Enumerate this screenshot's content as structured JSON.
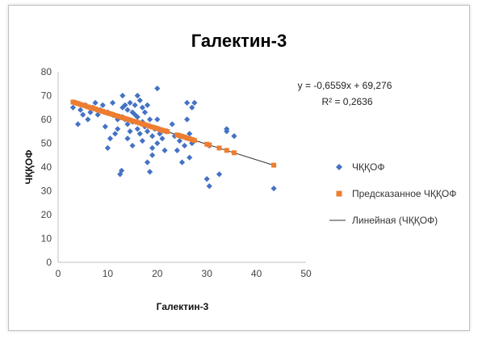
{
  "chart_data": {
    "type": "scatter",
    "title": "Галектин-3",
    "xlabel": "Галектин-3",
    "ylabel": "ЧҚҚОФ",
    "xlim": [
      0,
      50
    ],
    "ylim": [
      0,
      80
    ],
    "x_ticks": [
      "0",
      "10",
      "20",
      "30",
      "40",
      "50"
    ],
    "y_ticks": [
      "0",
      "10",
      "20",
      "30",
      "40",
      "50",
      "60",
      "70",
      "80"
    ],
    "grid": false,
    "legend_position": "right",
    "equation": "y = -0,6559x + 69,276",
    "r2_label": "R² = 0,2636",
    "trendline": {
      "slope": -0.6559,
      "intercept": 69.276,
      "x_range": [
        3,
        44
      ]
    },
    "series": [
      {
        "name": "ЧҚҚОФ",
        "marker": "diamond",
        "color": "#4472C4",
        "points": [
          [
            3,
            65
          ],
          [
            3.5,
            67
          ],
          [
            4,
            58
          ],
          [
            4.5,
            64
          ],
          [
            5,
            62
          ],
          [
            5.5,
            66
          ],
          [
            6,
            60
          ],
          [
            6.5,
            63
          ],
          [
            7,
            65
          ],
          [
            7.5,
            67
          ],
          [
            8,
            62
          ],
          [
            8.5,
            64
          ],
          [
            9,
            66
          ],
          [
            9.5,
            57
          ],
          [
            10,
            63
          ],
          [
            10,
            48
          ],
          [
            10.5,
            52
          ],
          [
            11,
            67
          ],
          [
            11,
            62
          ],
          [
            11.5,
            54
          ],
          [
            12,
            60
          ],
          [
            12,
            56
          ],
          [
            12.5,
            37
          ],
          [
            12.8,
            38.5
          ],
          [
            13,
            65
          ],
          [
            13,
            70
          ],
          [
            13,
            61
          ],
          [
            13.5,
            66
          ],
          [
            13.5,
            60
          ],
          [
            14,
            64
          ],
          [
            14,
            58
          ],
          [
            14,
            52
          ],
          [
            14.5,
            67
          ],
          [
            14.5,
            55
          ],
          [
            15,
            63
          ],
          [
            15,
            59
          ],
          [
            15,
            49
          ],
          [
            15.5,
            66
          ],
          [
            15.5,
            62
          ],
          [
            16,
            70
          ],
          [
            16,
            61
          ],
          [
            16,
            56
          ],
          [
            16.5,
            68
          ],
          [
            16.5,
            54
          ],
          [
            17,
            65
          ],
          [
            17,
            59
          ],
          [
            17,
            51
          ],
          [
            17.5,
            63
          ],
          [
            17.5,
            57
          ],
          [
            18,
            66
          ],
          [
            18,
            55
          ],
          [
            18,
            42
          ],
          [
            18.5,
            60
          ],
          [
            18.5,
            38
          ],
          [
            19,
            53
          ],
          [
            19,
            48
          ],
          [
            19,
            45
          ],
          [
            19.5,
            56
          ],
          [
            20,
            50
          ],
          [
            20,
            60
          ],
          [
            20,
            73
          ],
          [
            20.5,
            54
          ],
          [
            21,
            52
          ],
          [
            21.5,
            47
          ],
          [
            22,
            55
          ],
          [
            23,
            58
          ],
          [
            23.5,
            53
          ],
          [
            24,
            47
          ],
          [
            24.5,
            51
          ],
          [
            25,
            42
          ],
          [
            25.5,
            49
          ],
          [
            26,
            67
          ],
          [
            26,
            60
          ],
          [
            26.5,
            54
          ],
          [
            26.5,
            44
          ],
          [
            27,
            65
          ],
          [
            27,
            50
          ],
          [
            27.5,
            67
          ],
          [
            30,
            35
          ],
          [
            30.5,
            32
          ],
          [
            30.5,
            49
          ],
          [
            32.5,
            37
          ],
          [
            34,
            56
          ],
          [
            34,
            55
          ],
          [
            35.5,
            53
          ],
          [
            43.5,
            31
          ]
        ]
      },
      {
        "name": "Предсказанное ЧҚҚОФ",
        "marker": "square",
        "color": "#ED7D31",
        "points": [
          [
            3,
            67.3
          ],
          [
            3.5,
            67
          ],
          [
            4,
            66.7
          ],
          [
            4.5,
            66.3
          ],
          [
            5,
            66
          ],
          [
            5.5,
            65.7
          ],
          [
            6,
            65.3
          ],
          [
            6.5,
            65
          ],
          [
            7,
            64.7
          ],
          [
            7.5,
            64.4
          ],
          [
            8,
            64
          ],
          [
            8.5,
            63.7
          ],
          [
            9,
            63.4
          ],
          [
            9.5,
            63
          ],
          [
            10,
            62.7
          ],
          [
            10.5,
            62.4
          ],
          [
            11,
            62.1
          ],
          [
            11.5,
            61.7
          ],
          [
            12,
            61.4
          ],
          [
            12.5,
            61.1
          ],
          [
            13,
            60.7
          ],
          [
            13.5,
            60.4
          ],
          [
            14,
            60.1
          ],
          [
            14.5,
            59.8
          ],
          [
            15,
            59.4
          ],
          [
            15.5,
            59.1
          ],
          [
            16,
            58.8
          ],
          [
            16.5,
            58.5
          ],
          [
            17,
            58.1
          ],
          [
            17.5,
            57.8
          ],
          [
            18,
            57.5
          ],
          [
            18.5,
            57.1
          ],
          [
            19,
            56.8
          ],
          [
            19.5,
            56.5
          ],
          [
            20,
            56.2
          ],
          [
            20.5,
            55.8
          ],
          [
            21,
            55.5
          ],
          [
            21.5,
            55.2
          ],
          [
            22,
            54.9
          ],
          [
            24,
            53.5
          ],
          [
            24.5,
            53.2
          ],
          [
            25,
            52.9
          ],
          [
            25.5,
            52.6
          ],
          [
            26,
            52.2
          ],
          [
            26.5,
            51.9
          ],
          [
            27,
            51.6
          ],
          [
            27.5,
            51.2
          ],
          [
            30,
            49.6
          ],
          [
            30.5,
            49.3
          ],
          [
            32.5,
            48
          ],
          [
            34,
            47
          ],
          [
            35.5,
            46
          ],
          [
            43.5,
            40.8
          ]
        ]
      }
    ],
    "trend_name": "Линейная (ЧҚҚОФ)"
  }
}
